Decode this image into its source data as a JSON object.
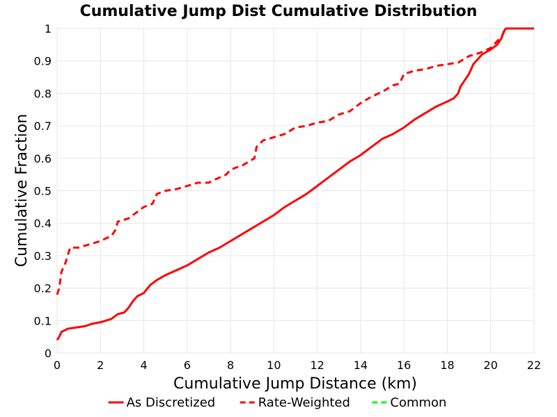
{
  "chart_data": {
    "type": "line",
    "title": "Cumulative Jump Dist Cumulative Distribution",
    "xlabel": "Cumulative Jump Distance (km)",
    "ylabel": "Cumulative Fraction",
    "xlim": [
      0,
      22
    ],
    "ylim": [
      0,
      1
    ],
    "x_ticks": [
      "0",
      "2",
      "4",
      "6",
      "8",
      "10",
      "12",
      "14",
      "16",
      "18",
      "20",
      "22"
    ],
    "y_ticks": [
      "0",
      "0.1",
      "0.2",
      "0.3",
      "0.4",
      "0.5",
      "0.6",
      "0.7",
      "0.8",
      "0.9",
      "1"
    ],
    "grid": true,
    "legend_position": "bottom",
    "series": [
      {
        "name": "As Discretized",
        "color": "#ff0000",
        "style": "solid",
        "points": [
          [
            0,
            0.04
          ],
          [
            0.1,
            0.05
          ],
          [
            0.2,
            0.065
          ],
          [
            0.5,
            0.075
          ],
          [
            1.0,
            0.08
          ],
          [
            1.3,
            0.083
          ],
          [
            1.6,
            0.09
          ],
          [
            2.0,
            0.095
          ],
          [
            2.5,
            0.105
          ],
          [
            2.8,
            0.12
          ],
          [
            3.1,
            0.125
          ],
          [
            3.3,
            0.14
          ],
          [
            3.5,
            0.16
          ],
          [
            3.7,
            0.175
          ],
          [
            4.0,
            0.185
          ],
          [
            4.3,
            0.21
          ],
          [
            4.6,
            0.225
          ],
          [
            5.0,
            0.24
          ],
          [
            5.5,
            0.255
          ],
          [
            6.0,
            0.27
          ],
          [
            6.5,
            0.29
          ],
          [
            7.0,
            0.31
          ],
          [
            7.5,
            0.325
          ],
          [
            8.0,
            0.345
          ],
          [
            8.5,
            0.365
          ],
          [
            9.0,
            0.385
          ],
          [
            9.5,
            0.405
          ],
          [
            10.0,
            0.425
          ],
          [
            10.5,
            0.45
          ],
          [
            11.0,
            0.47
          ],
          [
            11.5,
            0.49
          ],
          [
            12.0,
            0.515
          ],
          [
            12.5,
            0.54
          ],
          [
            13.0,
            0.565
          ],
          [
            13.5,
            0.59
          ],
          [
            14.0,
            0.61
          ],
          [
            14.5,
            0.635
          ],
          [
            15.0,
            0.66
          ],
          [
            15.5,
            0.675
          ],
          [
            16.0,
            0.695
          ],
          [
            16.5,
            0.72
          ],
          [
            17.0,
            0.74
          ],
          [
            17.5,
            0.76
          ],
          [
            18.0,
            0.775
          ],
          [
            18.3,
            0.785
          ],
          [
            18.5,
            0.8
          ],
          [
            18.6,
            0.82
          ],
          [
            18.8,
            0.84
          ],
          [
            19.0,
            0.86
          ],
          [
            19.2,
            0.89
          ],
          [
            19.4,
            0.905
          ],
          [
            19.6,
            0.92
          ],
          [
            20.0,
            0.935
          ],
          [
            20.3,
            0.95
          ],
          [
            20.5,
            0.97
          ],
          [
            20.6,
            0.99
          ],
          [
            20.7,
            1.0
          ],
          [
            22,
            1.0
          ]
        ]
      },
      {
        "name": "Rate-Weighted",
        "color": "#ff0000",
        "style": "dashed",
        "points": [
          [
            0,
            0.18
          ],
          [
            0.1,
            0.2
          ],
          [
            0.2,
            0.25
          ],
          [
            0.4,
            0.28
          ],
          [
            0.6,
            0.325
          ],
          [
            1.0,
            0.325
          ],
          [
            1.5,
            0.335
          ],
          [
            2.0,
            0.345
          ],
          [
            2.3,
            0.355
          ],
          [
            2.5,
            0.36
          ],
          [
            2.7,
            0.38
          ],
          [
            2.8,
            0.405
          ],
          [
            3.3,
            0.415
          ],
          [
            3.6,
            0.43
          ],
          [
            4.0,
            0.45
          ],
          [
            4.4,
            0.46
          ],
          [
            4.6,
            0.49
          ],
          [
            5.0,
            0.5
          ],
          [
            5.5,
            0.505
          ],
          [
            6.0,
            0.515
          ],
          [
            6.5,
            0.525
          ],
          [
            7.0,
            0.525
          ],
          [
            7.3,
            0.535
          ],
          [
            7.8,
            0.55
          ],
          [
            8.0,
            0.565
          ],
          [
            8.6,
            0.58
          ],
          [
            9.1,
            0.6
          ],
          [
            9.2,
            0.635
          ],
          [
            9.5,
            0.655
          ],
          [
            10.0,
            0.665
          ],
          [
            10.5,
            0.675
          ],
          [
            11.0,
            0.695
          ],
          [
            11.5,
            0.7
          ],
          [
            12.0,
            0.71
          ],
          [
            12.5,
            0.715
          ],
          [
            13.0,
            0.735
          ],
          [
            13.5,
            0.745
          ],
          [
            14.0,
            0.77
          ],
          [
            14.5,
            0.79
          ],
          [
            15.0,
            0.805
          ],
          [
            15.5,
            0.825
          ],
          [
            15.8,
            0.83
          ],
          [
            16.0,
            0.86
          ],
          [
            16.5,
            0.87
          ],
          [
            17.0,
            0.875
          ],
          [
            17.5,
            0.885
          ],
          [
            18.0,
            0.89
          ],
          [
            18.5,
            0.895
          ],
          [
            19.0,
            0.915
          ],
          [
            19.5,
            0.925
          ],
          [
            20.0,
            0.94
          ],
          [
            20.5,
            0.975
          ],
          [
            20.7,
            1.0
          ],
          [
            22,
            1.0
          ]
        ]
      },
      {
        "name": "Common",
        "color": "#00ff00",
        "style": "dashed",
        "points": []
      }
    ]
  }
}
